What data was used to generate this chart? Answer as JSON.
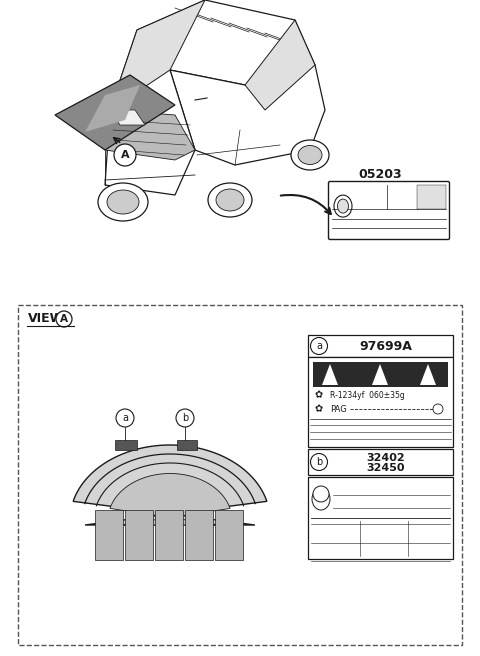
{
  "bg_color": "#ffffff",
  "title_number": "05203",
  "part_a_number": "97699A",
  "part_b_numbers": [
    "32402",
    "32450"
  ],
  "view_label": "VIEW",
  "ref_line_text": "R-1234yf  060±35g",
  "pag_text": "PAG",
  "line_color": "#1a1a1a",
  "dark_gray": "#555555",
  "medium_gray": "#999999",
  "light_gray": "#cccccc",
  "hood_fill": "#d0d0d0",
  "hood_inner": "#b8b8b8",
  "panel_fill": "#c0c0c0",
  "hood_dark": "#a8a8a8"
}
